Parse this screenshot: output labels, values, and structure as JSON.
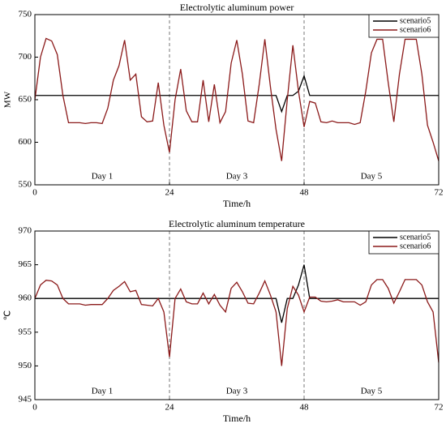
{
  "chart_data": [
    {
      "type": "line",
      "title": "Electrolytic aluminum power",
      "xlabel": "Time/h",
      "ylabel": "MW",
      "xlim": [
        0,
        72
      ],
      "xticks": [
        0,
        24,
        48,
        72
      ],
      "ylim": [
        550,
        750
      ],
      "yticks": [
        550,
        600,
        650,
        700,
        750
      ],
      "vlines": [
        24,
        48
      ],
      "annotations": [
        "Day 1",
        "Day 3",
        "Day 5"
      ],
      "legend": "upper right",
      "x": [
        0,
        1,
        2,
        3,
        4,
        5,
        6,
        7,
        8,
        9,
        10,
        11,
        12,
        13,
        14,
        15,
        16,
        17,
        18,
        19,
        20,
        21,
        22,
        23,
        24,
        25,
        26,
        27,
        28,
        29,
        30,
        31,
        32,
        33,
        34,
        35,
        36,
        37,
        38,
        39,
        40,
        41,
        42,
        43,
        44,
        45,
        46,
        47,
        48,
        49,
        50,
        51,
        52,
        53,
        54,
        55,
        56,
        57,
        58,
        59,
        60,
        61,
        62,
        63,
        64,
        65,
        66,
        67,
        68,
        69,
        70,
        71,
        72
      ],
      "series": [
        {
          "name": "scenario5",
          "color": "#000000",
          "values": [
            655,
            655,
            655,
            655,
            655,
            655,
            655,
            655,
            655,
            655,
            655,
            655,
            655,
            655,
            655,
            655,
            655,
            655,
            655,
            655,
            655,
            655,
            655,
            655,
            655,
            655,
            655,
            655,
            655,
            655,
            655,
            655,
            655,
            655,
            655,
            655,
            655,
            655,
            655,
            655,
            655,
            655,
            655,
            655,
            636,
            655,
            655,
            660,
            678,
            655,
            655,
            655,
            655,
            655,
            655,
            655,
            655,
            655,
            655,
            655,
            655,
            655,
            655,
            655,
            655,
            655,
            655,
            655,
            655,
            655,
            655,
            655,
            655
          ]
        },
        {
          "name": "scenario6",
          "color": "#8b1a1a",
          "values": [
            650,
            700,
            722,
            719,
            703,
            655,
            623,
            623,
            623,
            622,
            623,
            623,
            622,
            640,
            673,
            690,
            720,
            673,
            680,
            630,
            624,
            625,
            670,
            620,
            588,
            650,
            686,
            637,
            624,
            624,
            673,
            624,
            668,
            623,
            636,
            693,
            720,
            680,
            625,
            623,
            668,
            721,
            665,
            615,
            578,
            650,
            714,
            660,
            618,
            648,
            646,
            624,
            623,
            625,
            623,
            623,
            623,
            621,
            623,
            660,
            705,
            721,
            721,
            670,
            624,
            680,
            721,
            721,
            721,
            680,
            620,
            600,
            578
          ]
        }
      ]
    },
    {
      "type": "line",
      "title": "Electrolytic aluminum temperature",
      "xlabel": "Time/h",
      "ylabel": "℃",
      "xlim": [
        0,
        72
      ],
      "xticks": [
        0,
        24,
        48,
        72
      ],
      "ylim": [
        945,
        970
      ],
      "yticks": [
        945,
        950,
        955,
        960,
        965,
        970
      ],
      "vlines": [
        24,
        48
      ],
      "annotations": [
        "Day 1",
        "Day 3",
        "Day 5"
      ],
      "legend": "upper right",
      "x": [
        0,
        1,
        2,
        3,
        4,
        5,
        6,
        7,
        8,
        9,
        10,
        11,
        12,
        13,
        14,
        15,
        16,
        17,
        18,
        19,
        20,
        21,
        22,
        23,
        24,
        25,
        26,
        27,
        28,
        29,
        30,
        31,
        32,
        33,
        34,
        35,
        36,
        37,
        38,
        39,
        40,
        41,
        42,
        43,
        44,
        45,
        46,
        47,
        48,
        49,
        50,
        51,
        52,
        53,
        54,
        55,
        56,
        57,
        58,
        59,
        60,
        61,
        62,
        63,
        64,
        65,
        66,
        67,
        68,
        69,
        70,
        71,
        72
      ],
      "series": [
        {
          "name": "scenario5",
          "color": "#000000",
          "values": [
            960,
            960,
            960,
            960,
            960,
            960,
            960,
            960,
            960,
            960,
            960,
            960,
            960,
            960,
            960,
            960,
            960,
            960,
            960,
            960,
            960,
            960,
            960,
            960,
            960,
            960,
            960,
            960,
            960,
            960,
            960,
            960,
            960,
            960,
            960,
            960,
            960,
            960,
            960,
            960,
            960,
            960,
            960,
            960,
            956.4,
            960,
            960,
            962,
            965,
            960,
            960,
            960,
            960,
            960,
            960,
            960,
            960,
            960,
            960,
            960,
            960,
            960,
            960,
            960,
            960,
            960,
            960,
            960,
            960,
            960,
            960,
            960,
            960
          ]
        },
        {
          "name": "scenario6",
          "color": "#8b1a1a",
          "values": [
            960,
            962,
            962.7,
            962.6,
            962,
            960,
            959.2,
            959.2,
            959.2,
            959,
            959.1,
            959.1,
            959.1,
            960,
            961.2,
            961.8,
            962.5,
            961,
            961.2,
            959.1,
            959,
            958.9,
            960,
            958,
            951.3,
            960,
            961.4,
            959.5,
            959.2,
            959.2,
            960.8,
            959.2,
            960.6,
            959,
            958,
            961.5,
            962.4,
            961,
            959.3,
            959.2,
            960.8,
            962.6,
            960.5,
            958,
            950,
            958.5,
            961.8,
            960.5,
            958,
            960.2,
            960.2,
            959.6,
            959.5,
            959.6,
            959.8,
            959.5,
            959.5,
            959.5,
            959,
            959.5,
            962,
            962.8,
            962.8,
            961.5,
            959.3,
            961,
            962.8,
            962.8,
            962.8,
            962,
            959.5,
            958,
            950.5
          ]
        }
      ]
    }
  ]
}
